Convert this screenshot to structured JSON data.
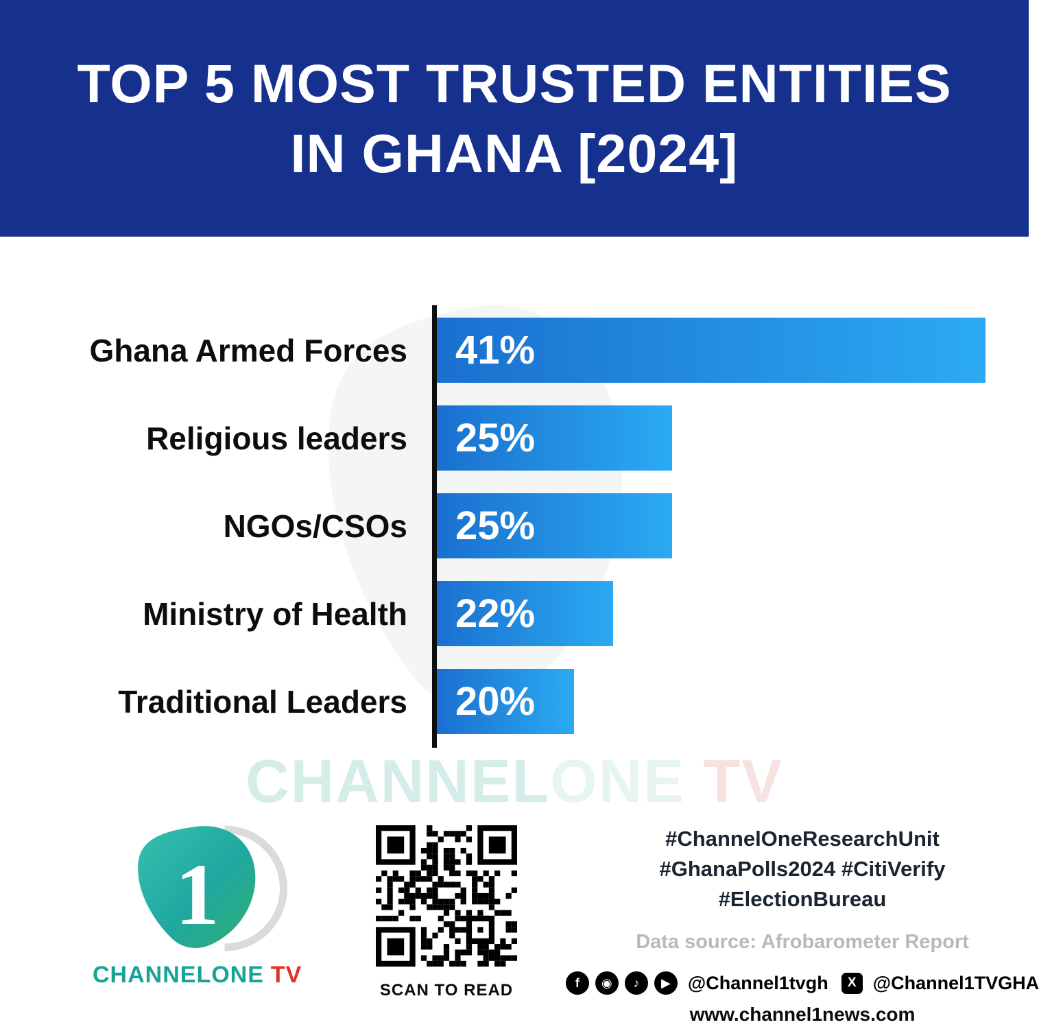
{
  "header": {
    "title_line1": "TOP 5 MOST TRUSTED ENTITIES",
    "title_line2": "IN GHANA [2024]"
  },
  "chart_data": {
    "type": "bar",
    "orientation": "horizontal",
    "title": "Top 5 Most Trusted Entities in Ghana [2024]",
    "categories": [
      "Ghana Armed Forces",
      "Religious leaders",
      "NGOs/CSOs",
      "Ministry of Health",
      "Traditional Leaders"
    ],
    "values": [
      41,
      25,
      25,
      22,
      20
    ],
    "value_labels": [
      "41%",
      "25%",
      "25%",
      "22%",
      "20%"
    ],
    "unit": "%",
    "xlim": [
      0,
      41
    ],
    "grid": false,
    "legend": false,
    "bar_gradient": [
      "#1a70cf",
      "#2baaf3"
    ]
  },
  "watermark": {
    "channel": "CHANNEL",
    "one": "ONE",
    "tv": " TV"
  },
  "footer": {
    "logo_numeral": "1",
    "logo_channelone": "CHANNELONE",
    "logo_tv": "TV",
    "qr_caption": "SCAN TO READ",
    "hashtag_line1": "#ChannelOneResearchUnit",
    "hashtag_line2": "#GhanaPolls2024 #CitiVerify",
    "hashtag_line3": "#ElectionBureau",
    "data_source": "Data source: Afrobarometer Report",
    "social_handle": "@Channel1tvgh",
    "x_handle": "@Channel1TVGHA",
    "website": "www.channel1news.com",
    "social_icons": [
      "facebook-icon",
      "instagram-icon",
      "tiktok-icon",
      "youtube-icon",
      "x-icon"
    ]
  },
  "colors": {
    "header_bg": "#15318d",
    "bar_start": "#1a70cf",
    "bar_end": "#2baaf3",
    "brand_teal": "#17a398",
    "brand_red": "#e23127",
    "watermark_teal": "#d5ede9",
    "watermark_pink": "#f6e2e0",
    "muted_gray": "#b5bac0"
  }
}
